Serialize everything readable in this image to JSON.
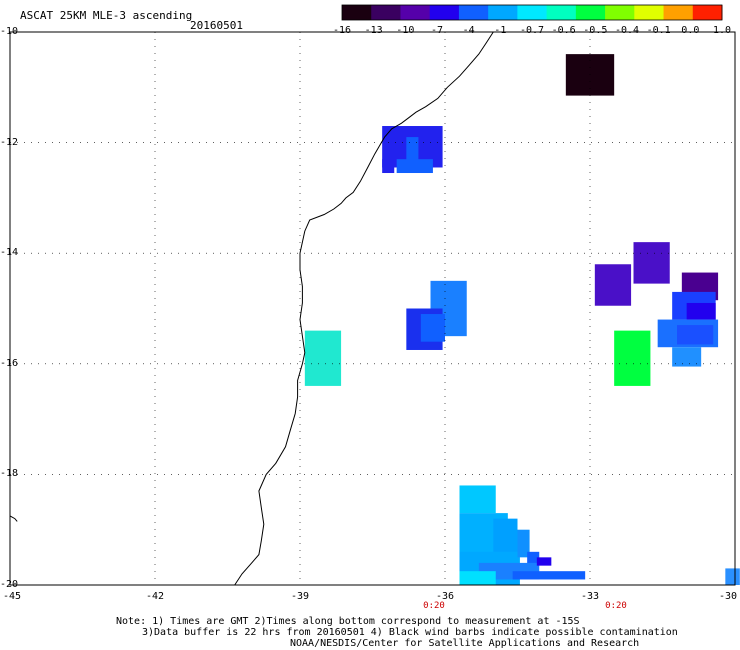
{
  "header": {
    "title": "ASCAT 25KM MLE-3 ascending",
    "date": "20160501"
  },
  "colorbar": {
    "labels": [
      "-16",
      "-13",
      "-10",
      "-7",
      "-4",
      "-1",
      "-0.7",
      "-0.6",
      "-0.5",
      "-0.4",
      "-0.1",
      "0.0",
      "1.0"
    ],
    "colors": [
      "#1a0010",
      "#3a0060",
      "#5500aa",
      "#2200ee",
      "#1060ff",
      "#00a8ff",
      "#00e8ff",
      "#00ffc0",
      "#00ff40",
      "#80ff00",
      "#e0ff00",
      "#ffa000",
      "#ff2000"
    ]
  },
  "axes": {
    "lat_labels": [
      "-10",
      "-12",
      "-14",
      "-16",
      "-18",
      "-20"
    ],
    "lon_labels": [
      "-45",
      "-42",
      "-39",
      "-36",
      "-33",
      "-30"
    ],
    "time_labels": [
      "0:20",
      "0:20"
    ]
  },
  "notes": {
    "line1": "Note: 1) Times are GMT 2)Times along bottom correspond to measurement at -15S",
    "line2": "3)Data buffer is 22 hrs from 20160501 4) Black wind barbs indicate possible contamination",
    "line3": "NOAA/NESDIS/Center for Satellite Applications and Research"
  },
  "map_data": {
    "lon_range": [
      -45,
      -30
    ],
    "lat_range": [
      -20,
      -10
    ],
    "cell_deg": 0.25,
    "cells": [
      {
        "lon": -33.5,
        "lat": -10.4,
        "w": 1.0,
        "h": 0.75,
        "color": "#1a0010"
      },
      {
        "lon": -37.3,
        "lat": -11.7,
        "w": 1.25,
        "h": 0.75,
        "color": "#2222ee"
      },
      {
        "lon": -36.8,
        "lat": -11.9,
        "w": 0.25,
        "h": 0.5,
        "color": "#1060ff"
      },
      {
        "lon": -37.0,
        "lat": -12.3,
        "w": 0.75,
        "h": 0.25,
        "color": "#1060ff"
      },
      {
        "lon": -37.3,
        "lat": -12.3,
        "w": 0.25,
        "h": 0.25,
        "color": "#2222ee"
      },
      {
        "lon": -36.3,
        "lat": -14.5,
        "w": 0.75,
        "h": 1.0,
        "color": "#1a80ff"
      },
      {
        "lon": -36.8,
        "lat": -15.0,
        "w": 0.75,
        "h": 0.75,
        "color": "#1a30ee"
      },
      {
        "lon": -36.5,
        "lat": -15.1,
        "w": 0.5,
        "h": 0.5,
        "color": "#1060ff"
      },
      {
        "lon": -38.9,
        "lat": -15.4,
        "w": 0.75,
        "h": 1.0,
        "color": "#20e8d0"
      },
      {
        "lon": -35.7,
        "lat": -18.2,
        "w": 0.75,
        "h": 0.5,
        "color": "#00c8ff"
      },
      {
        "lon": -35.7,
        "lat": -18.7,
        "w": 1.0,
        "h": 0.75,
        "color": "#00b0ff"
      },
      {
        "lon": -35.0,
        "lat": -18.8,
        "w": 0.5,
        "h": 0.75,
        "color": "#00a0ff"
      },
      {
        "lon": -35.7,
        "lat": -19.4,
        "w": 1.25,
        "h": 0.6,
        "color": "#00a8ff"
      },
      {
        "lon": -34.5,
        "lat": -19.0,
        "w": 0.25,
        "h": 0.5,
        "color": "#1090ff"
      },
      {
        "lon": -34.3,
        "lat": -19.4,
        "w": 0.25,
        "h": 0.25,
        "color": "#1060ff"
      },
      {
        "lon": -35.3,
        "lat": -19.6,
        "w": 1.25,
        "h": 0.3,
        "color": "#1a80ff"
      },
      {
        "lon": -34.6,
        "lat": -19.75,
        "w": 1.5,
        "h": 0.15,
        "color": "#1060ff"
      },
      {
        "lon": -34.1,
        "lat": -19.5,
        "w": 0.3,
        "h": 0.15,
        "color": "#2200ee"
      },
      {
        "lon": -35.7,
        "lat": -19.75,
        "w": 0.75,
        "h": 0.25,
        "color": "#00e0ff"
      },
      {
        "lon": -32.9,
        "lat": -14.2,
        "w": 0.75,
        "h": 0.75,
        "color": "#4a10c8"
      },
      {
        "lon": -32.1,
        "lat": -13.8,
        "w": 0.75,
        "h": 0.75,
        "color": "#4a10c8"
      },
      {
        "lon": -31.1,
        "lat": -14.35,
        "w": 0.75,
        "h": 0.5,
        "color": "#4a0090"
      },
      {
        "lon": -31.3,
        "lat": -14.7,
        "w": 0.9,
        "h": 0.5,
        "color": "#1a40ff"
      },
      {
        "lon": -31.0,
        "lat": -14.9,
        "w": 0.6,
        "h": 0.3,
        "color": "#2200ee"
      },
      {
        "lon": -31.6,
        "lat": -15.2,
        "w": 1.25,
        "h": 0.5,
        "color": "#1a70ff"
      },
      {
        "lon": -31.2,
        "lat": -15.3,
        "w": 0.75,
        "h": 0.35,
        "color": "#1a50ff"
      },
      {
        "lon": -31.3,
        "lat": -15.7,
        "w": 0.6,
        "h": 0.35,
        "color": "#2090ff"
      },
      {
        "lon": -32.5,
        "lat": -15.4,
        "w": 0.75,
        "h": 1.0,
        "color": "#00ff40"
      },
      {
        "lon": -30.2,
        "lat": -19.7,
        "w": 0.3,
        "h": 0.3,
        "color": "#2a90ff"
      }
    ],
    "coastline": [
      [
        -35.0,
        -10.0
      ],
      [
        -35.15,
        -10.2
      ],
      [
        -35.3,
        -10.4
      ],
      [
        -35.5,
        -10.6
      ],
      [
        -35.7,
        -10.8
      ],
      [
        -35.95,
        -11.0
      ],
      [
        -36.15,
        -11.2
      ],
      [
        -36.4,
        -11.35
      ],
      [
        -36.6,
        -11.45
      ],
      [
        -36.75,
        -11.55
      ],
      [
        -36.9,
        -11.65
      ],
      [
        -37.1,
        -11.75
      ],
      [
        -37.25,
        -11.9
      ],
      [
        -37.45,
        -12.2
      ],
      [
        -37.6,
        -12.45
      ],
      [
        -37.75,
        -12.7
      ],
      [
        -37.9,
        -12.9
      ],
      [
        -38.05,
        -13.0
      ],
      [
        -38.15,
        -13.1
      ],
      [
        -38.3,
        -13.2
      ],
      [
        -38.5,
        -13.3
      ],
      [
        -38.8,
        -13.4
      ],
      [
        -38.9,
        -13.6
      ],
      [
        -38.95,
        -13.8
      ],
      [
        -39.0,
        -14.0
      ],
      [
        -39.0,
        -14.3
      ],
      [
        -38.95,
        -14.6
      ],
      [
        -38.95,
        -14.9
      ],
      [
        -39.0,
        -15.2
      ],
      [
        -38.95,
        -15.5
      ],
      [
        -38.9,
        -15.8
      ],
      [
        -38.95,
        -16.0
      ],
      [
        -39.05,
        -16.3
      ],
      [
        -39.05,
        -16.6
      ],
      [
        -39.1,
        -16.9
      ],
      [
        -39.2,
        -17.2
      ],
      [
        -39.3,
        -17.5
      ],
      [
        -39.5,
        -17.8
      ],
      [
        -39.7,
        -18.0
      ],
      [
        -39.85,
        -18.3
      ],
      [
        -39.8,
        -18.6
      ],
      [
        -39.75,
        -18.9
      ],
      [
        -39.8,
        -19.2
      ],
      [
        -39.85,
        -19.45
      ],
      [
        -40.0,
        -19.6
      ],
      [
        -40.2,
        -19.8
      ],
      [
        -40.35,
        -20.0
      ]
    ],
    "islands": [
      [
        [
          -45.0,
          -18.75
        ],
        [
          -44.9,
          -18.8
        ],
        [
          -44.85,
          -18.85
        ]
      ]
    ]
  }
}
